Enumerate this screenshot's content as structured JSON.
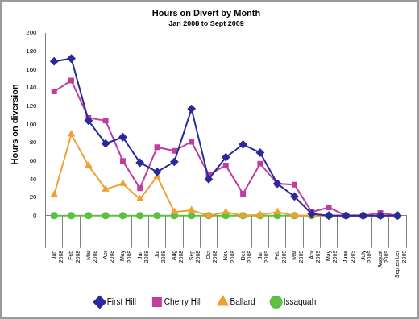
{
  "chart_data": {
    "type": "line",
    "title": "Hours on Divert by Month",
    "subtitle": "Jan 2008 to Sept 2009",
    "y_label": "Hours on diversion",
    "categories": [
      [
        "Jan",
        "2008"
      ],
      [
        "Feb",
        "2008"
      ],
      [
        "Mar",
        "2008"
      ],
      [
        "Apr",
        "2008"
      ],
      [
        "May",
        "2008"
      ],
      [
        "Jun",
        "2008"
      ],
      [
        "Jul",
        "2008"
      ],
      [
        "Aug",
        "2008"
      ],
      [
        "Sep",
        "2008"
      ],
      [
        "Oct",
        "2008"
      ],
      [
        "Nov",
        "2008"
      ],
      [
        "Dec",
        "2008"
      ],
      [
        "Jan",
        "2009"
      ],
      [
        "Feb",
        "2009"
      ],
      [
        "Mar",
        "2009"
      ],
      [
        "Apr",
        "2009"
      ],
      [
        "May",
        "2009"
      ],
      [
        "June",
        "2009"
      ],
      [
        "July",
        "2009"
      ],
      [
        "August",
        "2009"
      ],
      [
        "September",
        "2009"
      ]
    ],
    "series": [
      {
        "name": "First Hill",
        "color": "#2a2a9c",
        "marker": "diamond",
        "values": [
          169,
          172,
          104,
          79,
          86,
          58,
          48,
          59,
          117,
          40,
          64,
          78,
          69,
          35,
          21,
          2,
          0,
          0,
          0,
          0,
          0
        ]
      },
      {
        "name": "Cherry Hill",
        "color": "#c03ca0",
        "marker": "square",
        "values": [
          136,
          148,
          107,
          104,
          60,
          30,
          75,
          71,
          81,
          45,
          55,
          24,
          57,
          35,
          34,
          4,
          9,
          0,
          0,
          3,
          0
        ]
      },
      {
        "name": "Ballard",
        "color": "#f0a030",
        "marker": "triangle",
        "values": [
          23,
          89,
          55,
          29,
          35,
          18,
          43,
          4,
          6,
          0,
          4,
          0,
          1,
          4,
          0,
          0,
          0,
          0,
          0,
          0,
          0
        ]
      },
      {
        "name": "Issaquah",
        "color": "#5cc040",
        "marker": "circle",
        "values": [
          0,
          0,
          0,
          0,
          0,
          0,
          0,
          0,
          0,
          0,
          0,
          0,
          0,
          0,
          0,
          0,
          0,
          0,
          0,
          0,
          0
        ]
      }
    ],
    "ylim": [
      0,
      200
    ],
    "yticks": [
      0,
      20,
      40,
      60,
      80,
      100,
      120,
      140,
      160,
      180,
      200
    ],
    "grid": false,
    "legend": "bottom"
  }
}
